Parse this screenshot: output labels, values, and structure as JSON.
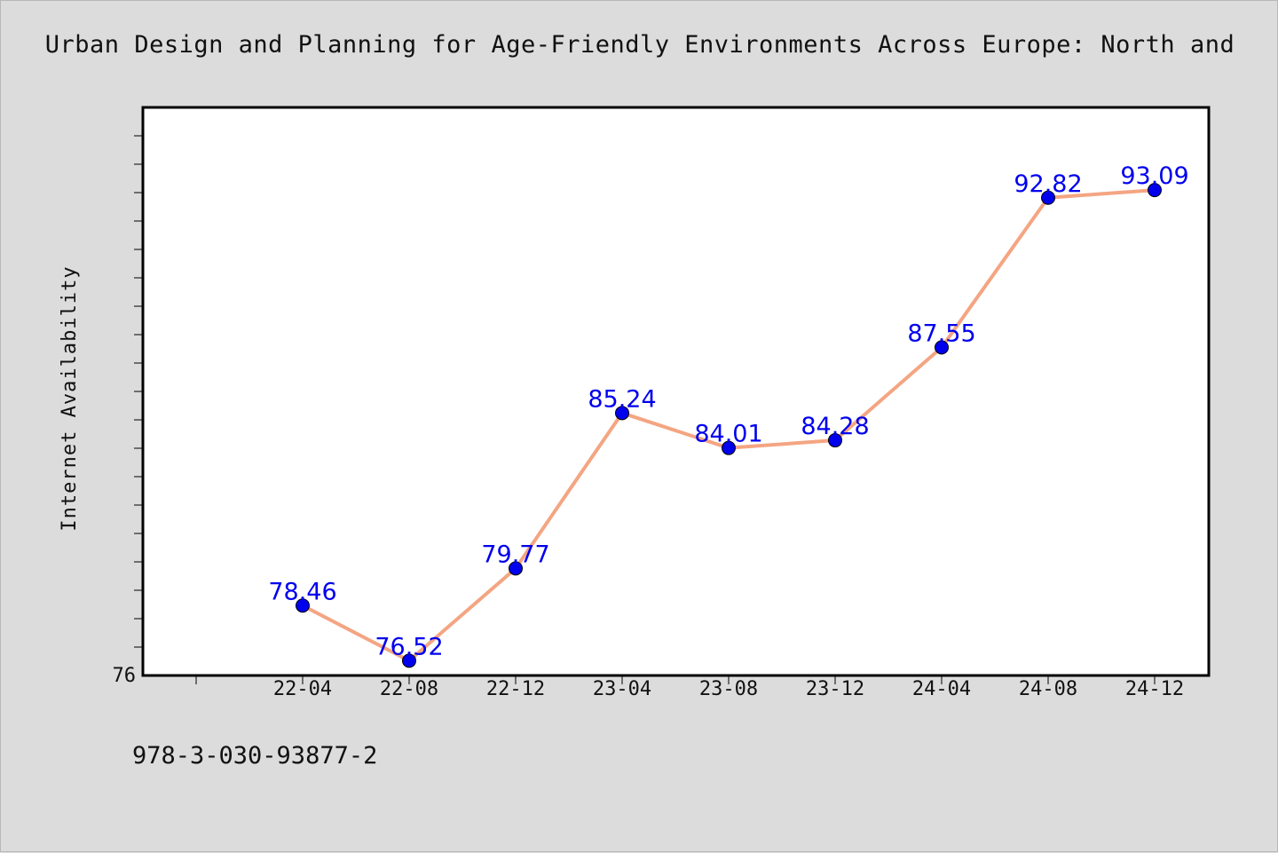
{
  "figure": {
    "footer_text": "978-3-030-93877-2"
  },
  "chart_data": {
    "type": "line",
    "title": "Urban Design and Planning for Age-Friendly Environments Across Europe: North and",
    "xlabel": "",
    "ylabel": "Internet Availability",
    "categories": [
      "22-04",
      "22-08",
      "22-12",
      "23-04",
      "23-08",
      "23-12",
      "24-04",
      "24-08",
      "24-12"
    ],
    "series": [
      {
        "values": [
          78.46,
          76.52,
          79.77,
          85.24,
          84.01,
          84.28,
          87.55,
          92.82,
          93.09
        ],
        "color": "#f4a582",
        "marker_color": "#0000ee"
      }
    ],
    "y_tick_label": "76",
    "ylim": [
      76,
      96
    ],
    "data_labels": true,
    "grid": false,
    "legend": "none"
  }
}
